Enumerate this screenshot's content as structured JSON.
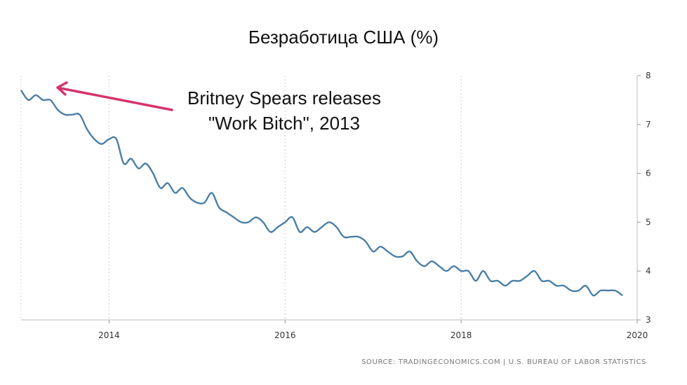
{
  "chart_data": {
    "type": "line",
    "title": "Безработица США (%)",
    "xlabel": "",
    "ylabel": "",
    "xlim": [
      2013.0,
      2020.0
    ],
    "ylim": [
      3,
      8
    ],
    "x_ticks": [
      2014,
      2016,
      2018,
      2020
    ],
    "y_ticks": [
      3,
      4,
      5,
      6,
      7,
      8
    ],
    "grid": "vertical dotted",
    "y_axis_side": "right",
    "line_color": "#4a7fa8",
    "series": [
      {
        "frequency": "monthly",
        "start": "2013-01",
        "values": [
          7.7,
          7.5,
          7.6,
          7.5,
          7.5,
          7.3,
          7.2,
          7.2,
          7.2,
          6.9,
          6.7,
          6.6,
          6.7,
          6.7,
          6.2,
          6.3,
          6.1,
          6.2,
          6.0,
          5.7,
          5.8,
          5.6,
          5.7,
          5.5,
          5.4,
          5.4,
          5.6,
          5.3,
          5.2,
          5.1,
          5.0,
          5.0,
          5.1,
          5.0,
          4.8,
          4.9,
          5.0,
          5.1,
          4.8,
          4.9,
          4.8,
          4.9,
          5.0,
          4.9,
          4.7,
          4.7,
          4.7,
          4.6,
          4.4,
          4.5,
          4.4,
          4.3,
          4.3,
          4.4,
          4.2,
          4.1,
          4.2,
          4.1,
          4.0,
          4.1,
          4.0,
          4.0,
          3.8,
          4.0,
          3.8,
          3.8,
          3.7,
          3.8,
          3.8,
          3.9,
          4.0,
          3.8,
          3.8,
          3.7,
          3.7,
          3.6,
          3.6,
          3.7,
          3.5,
          3.6,
          3.6,
          3.6,
          3.5
        ]
      }
    ],
    "annotation": {
      "line1": "Britney Spears releases",
      "line2": "\"Work Bitch\", 2013",
      "arrow_color": "#d6336c"
    },
    "source": "SOURCE: TRADINGECONOMICS.COM  |  U.S. BUREAU OF LABOR STATISTICS"
  }
}
